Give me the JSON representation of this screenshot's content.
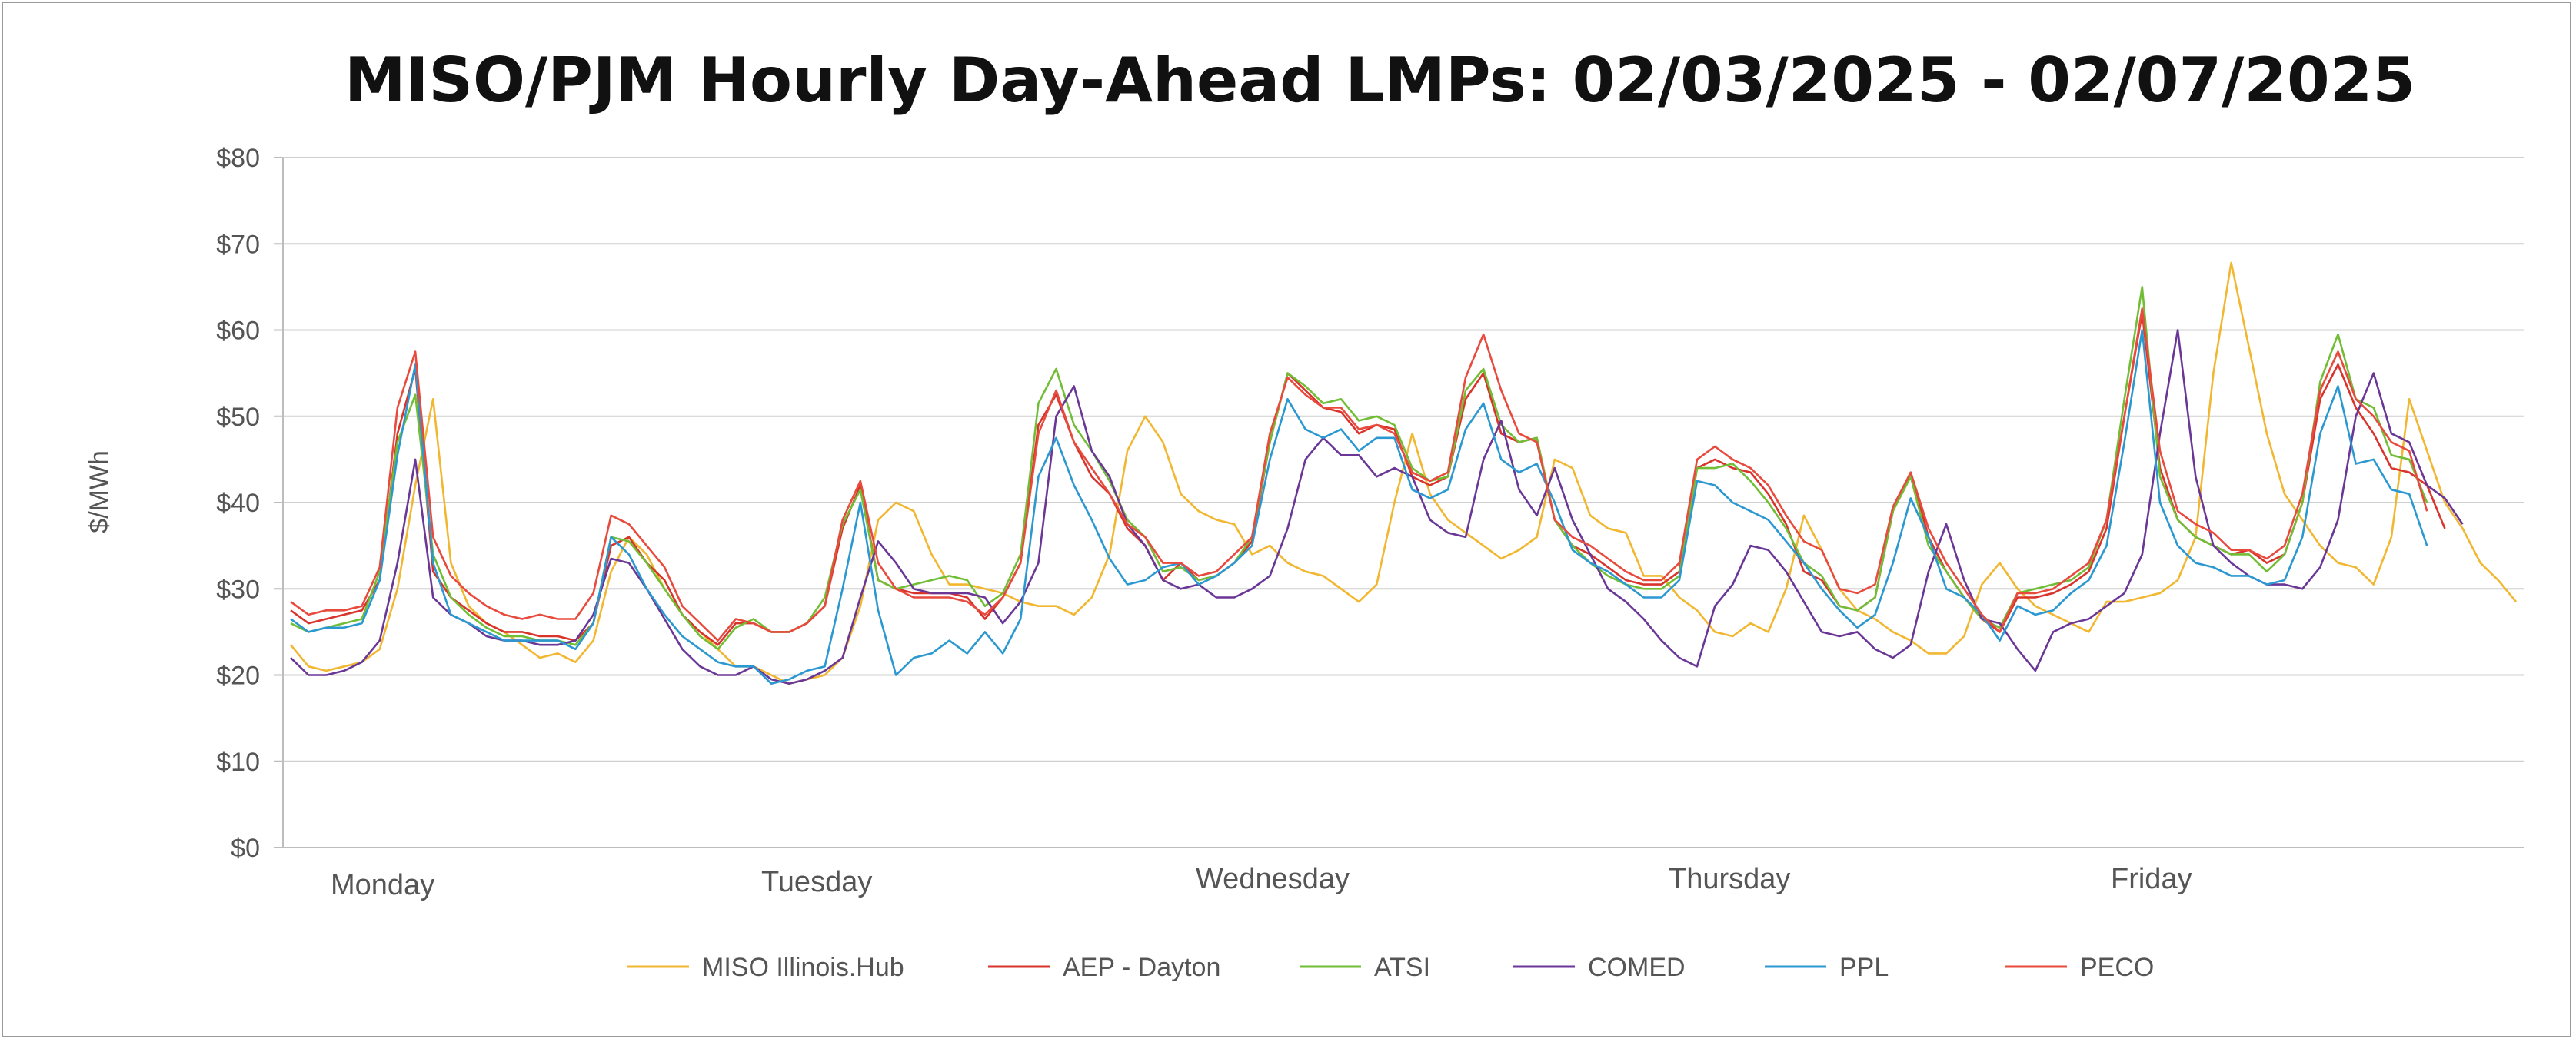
{
  "chart_data": {
    "type": "line",
    "title": "MISO/PJM Hourly Day-Ahead LMPs: 02/03/2025 - 02/07/2025",
    "ylabel": "$/MWh",
    "xlabel": "",
    "ylim": [
      0,
      80
    ],
    "yticks": [
      0,
      10,
      20,
      30,
      40,
      50,
      60,
      70,
      80
    ],
    "ytick_labels": [
      "$0",
      "$10",
      "$20",
      "$30",
      "$40",
      "$50",
      "$60",
      "$70",
      "$80"
    ],
    "day_labels": [
      "Monday",
      "Tuesday",
      "Wednesday",
      "Thursday",
      "Friday"
    ],
    "hours_per_day": 24,
    "grid": true,
    "legend_position": "bottom",
    "series": [
      {
        "name": "MISO Illinois.Hub",
        "color": "#F2B731",
        "values": [
          23.5,
          21,
          20.5,
          21,
          21.5,
          23,
          30,
          42,
          52,
          33,
          28,
          26,
          25,
          23.5,
          22,
          22.5,
          21.5,
          24,
          32,
          36,
          34,
          30,
          27,
          25,
          23,
          21,
          21,
          20,
          19,
          19.5,
          20,
          22,
          28,
          38,
          40,
          39,
          34,
          30.5,
          30.5,
          30,
          29.5,
          28.5,
          28,
          28,
          27,
          29,
          34,
          46,
          50,
          47,
          41,
          39,
          38,
          37.5,
          34,
          35,
          33,
          32,
          31.5,
          30,
          28.5,
          30.5,
          40,
          48,
          41,
          38,
          36.5,
          35,
          33.5,
          34.5,
          36,
          45,
          44,
          38.5,
          37,
          36.5,
          31.5,
          31.5,
          29,
          27.5,
          25,
          24.5,
          26,
          25,
          30,
          38.5,
          34.5,
          30,
          27.5,
          26.5,
          25,
          24,
          22.5,
          22.5,
          24.5,
          30.5,
          33,
          30,
          28,
          27,
          26,
          25,
          28.5,
          28.5,
          29,
          29.5,
          31,
          36,
          55,
          67.8,
          58,
          48,
          41,
          38,
          35,
          33,
          32.5,
          30.5,
          36,
          52,
          46,
          40,
          37,
          33,
          31,
          28.5
        ]
      },
      {
        "name": "AEP - Dayton",
        "color": "#D9342B",
        "values": [
          27.5,
          26,
          26.5,
          27,
          27.5,
          31,
          48,
          55.5,
          32,
          29,
          27.5,
          26,
          25,
          25,
          24.5,
          24.5,
          24,
          26,
          35,
          36,
          33,
          31,
          27,
          25,
          23.5,
          26,
          26,
          25,
          25,
          26,
          28,
          37,
          42,
          31,
          30,
          29.5,
          29.5,
          29.5,
          29,
          26.5,
          29,
          33,
          49,
          52.5,
          47,
          43,
          41,
          37,
          35,
          31,
          33,
          31,
          31.5,
          33,
          35.5,
          47,
          55,
          53,
          51,
          50.5,
          48,
          49,
          48.5,
          43,
          42,
          43,
          52,
          55,
          48,
          47,
          47.5,
          38,
          35,
          34,
          32.5,
          31,
          30.5,
          30.5,
          32,
          44,
          45,
          44,
          43.5,
          41,
          37.5,
          32,
          31,
          28,
          27.5,
          29,
          39,
          43.5,
          36,
          32,
          29,
          26.5,
          25,
          29,
          29,
          29.5,
          30.5,
          32,
          37,
          50,
          62,
          44,
          38,
          36,
          35,
          34,
          34.5,
          33,
          34,
          40,
          52,
          56,
          51,
          48,
          44,
          43.5,
          42,
          37
        ]
      },
      {
        "name": "ATSI",
        "color": "#71BE36",
        "values": [
          26,
          25,
          25.5,
          26,
          26.5,
          32,
          47,
          52.5,
          34,
          29,
          27,
          25.5,
          24.5,
          24.5,
          24,
          24,
          23.5,
          26,
          36,
          35.5,
          33,
          30,
          27,
          24.5,
          23,
          25.5,
          26.5,
          25,
          25,
          26,
          29,
          37.5,
          41.5,
          31,
          30,
          30.5,
          31,
          31.5,
          31,
          28,
          29.5,
          34,
          51.5,
          55.5,
          49,
          46,
          42.5,
          38,
          36,
          32,
          32.5,
          31,
          31.5,
          33,
          36,
          47,
          55,
          53.5,
          51.5,
          52,
          49.5,
          50,
          49,
          44,
          42.5,
          43,
          53,
          55.5,
          49,
          47,
          47.5,
          38,
          35,
          33,
          31.5,
          30.5,
          30,
          30,
          31.5,
          44,
          44,
          44.5,
          42.5,
          40,
          37,
          33,
          31.5,
          28,
          27.5,
          29,
          39,
          43,
          35,
          32,
          29,
          26.5,
          25.5,
          29.5,
          30,
          30.5,
          31,
          32.5,
          38,
          52,
          65,
          43,
          38,
          36,
          35,
          34,
          34,
          32,
          34,
          40,
          54,
          59.5,
          52,
          51,
          45.5,
          45,
          40
        ]
      },
      {
        "name": "COMED",
        "color": "#6A3797",
        "values": [
          22,
          20,
          20,
          20.5,
          21.5,
          24,
          33,
          45,
          29,
          27,
          26,
          24.5,
          24,
          24,
          23.5,
          23.5,
          24,
          27,
          33.5,
          33,
          30,
          26.5,
          23,
          21,
          20,
          20,
          21,
          19.5,
          19,
          19.5,
          20.5,
          22,
          29,
          35.5,
          33,
          30,
          29.5,
          29.5,
          29.5,
          29,
          26,
          28.5,
          33,
          50,
          53.5,
          46,
          43,
          37.5,
          35,
          31,
          30,
          30.5,
          29,
          29,
          30,
          31.5,
          37,
          45,
          47.5,
          45.5,
          45.5,
          43,
          44,
          43,
          38,
          36.5,
          36,
          45,
          49.5,
          41.5,
          38.5,
          44,
          38,
          34,
          30,
          28.5,
          26.5,
          24,
          22,
          21,
          28,
          30.5,
          35,
          34.5,
          32,
          28.5,
          25,
          24.5,
          25,
          23,
          22,
          23.5,
          32,
          37.5,
          31,
          26.5,
          26,
          23,
          20.5,
          25,
          26,
          26.5,
          28,
          29.5,
          34,
          48,
          60,
          43,
          35,
          33,
          31.5,
          30.5,
          30.5,
          30,
          32.5,
          38,
          50,
          55,
          48,
          47,
          42,
          40.5,
          37.5
        ]
      },
      {
        "name": "PPL",
        "color": "#2B98D1",
        "values": [
          26.5,
          25,
          25.5,
          25.5,
          26,
          31,
          45.5,
          56,
          33,
          27,
          26,
          25,
          24,
          24,
          24,
          24,
          23,
          26,
          36,
          34,
          30,
          27,
          24.5,
          23,
          21.5,
          21,
          21,
          19,
          19.5,
          20.5,
          21,
          30,
          40,
          27.5,
          20,
          22,
          22.5,
          24,
          22.5,
          25,
          22.5,
          26.5,
          43,
          47.5,
          42,
          38,
          33.5,
          30.5,
          31,
          32.5,
          33,
          30.5,
          31.5,
          33,
          35,
          45,
          52,
          48.5,
          47.5,
          48.5,
          46,
          47.5,
          47.5,
          41.5,
          40.5,
          41.5,
          48.5,
          51.5,
          45,
          43.5,
          44.5,
          40,
          34.5,
          33,
          32,
          30.5,
          29,
          29,
          31,
          42.5,
          42,
          40,
          39,
          38,
          35.5,
          33,
          30,
          27.5,
          25.5,
          27,
          33,
          40.5,
          36,
          30,
          29,
          27,
          24,
          28,
          27,
          27.5,
          29.5,
          31,
          35,
          47,
          60,
          40,
          35,
          33,
          32.5,
          31.5,
          31.5,
          30.5,
          31,
          36,
          48,
          53.5,
          44.5,
          45,
          41.5,
          41,
          35
        ]
      },
      {
        "name": "PECO",
        "color": "#E84B3E",
        "values": [
          28.5,
          27,
          27.5,
          27.5,
          28,
          32.5,
          51,
          57.5,
          36,
          31.5,
          29.5,
          28,
          27,
          26.5,
          27,
          26.5,
          26.5,
          29.5,
          38.5,
          37.5,
          35,
          32.5,
          28,
          26,
          24,
          26.5,
          26,
          25,
          25,
          26,
          28,
          38,
          42.5,
          33,
          30,
          29,
          29,
          29,
          28.5,
          27,
          29,
          33,
          48,
          53,
          47,
          44,
          41,
          37.5,
          36,
          33,
          33,
          31.5,
          32,
          34,
          36,
          48,
          54.5,
          52.5,
          51,
          51,
          48.5,
          49,
          48,
          43.5,
          42.5,
          43.5,
          54.5,
          59.5,
          53,
          48,
          47,
          38,
          36,
          35,
          33.5,
          32,
          31,
          31,
          33,
          45,
          46.5,
          45,
          44,
          42,
          38.5,
          35.5,
          34.5,
          30,
          29.5,
          30.5,
          39.5,
          43.5,
          37,
          33,
          30,
          27,
          25,
          29.5,
          29.5,
          30,
          31.5,
          33,
          38,
          50,
          62.5,
          46,
          39,
          37.5,
          36.5,
          34.5,
          34.5,
          33.5,
          35,
          41,
          53,
          57.5,
          52,
          50,
          47,
          46,
          39
        ]
      }
    ]
  }
}
